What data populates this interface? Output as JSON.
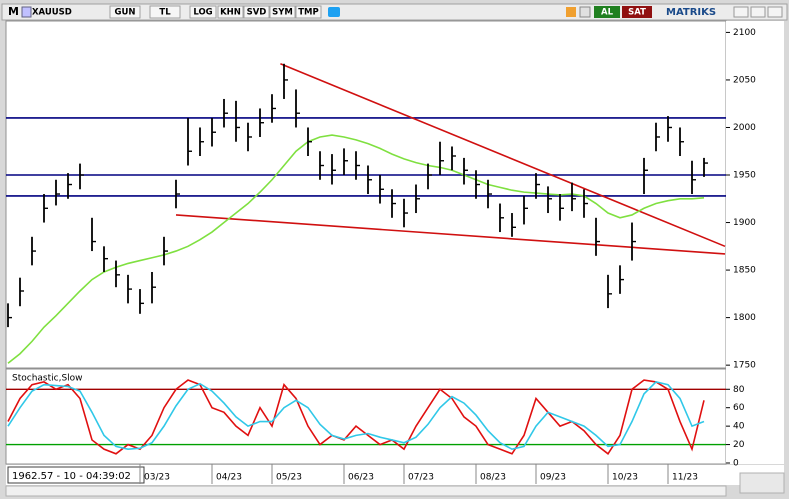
{
  "toolbar": {
    "menu": "M",
    "symbol": "XAUUSD",
    "buttons": [
      "GUN",
      "TL",
      "LOG",
      "KHN",
      "SVD",
      "SYM",
      "TMP"
    ],
    "buy": "AL",
    "sell": "SAT",
    "brand": "MATRIKS"
  },
  "status": "1962.57 - 10 - 04:39:02",
  "chart_data": [
    {
      "type": "ohlc",
      "categories": [
        null,
        null,
        null,
        null,
        null,
        null,
        null,
        null,
        null,
        null,
        null,
        "03/23",
        null,
        null,
        null,
        null,
        null,
        "04/23",
        null,
        null,
        null,
        null,
        "05/23",
        null,
        null,
        null,
        null,
        null,
        "06/23",
        null,
        null,
        null,
        null,
        "07/23",
        null,
        null,
        null,
        null,
        null,
        "08/23",
        null,
        null,
        null,
        null,
        "09/23",
        null,
        null,
        null,
        null,
        null,
        "10/23",
        null,
        null,
        null,
        null,
        "11/23",
        null,
        null,
        null
      ],
      "high": [
        1815,
        1842,
        1885,
        1930,
        1945,
        1952,
        1962,
        1905,
        1875,
        1860,
        1845,
        1830,
        1848,
        1885,
        1945,
        2010,
        2000,
        2010,
        2030,
        2028,
        2005,
        2020,
        2035,
        2067,
        2040,
        2000,
        1975,
        1972,
        1978,
        1975,
        1960,
        1950,
        1935,
        1925,
        1940,
        1962,
        1985,
        1980,
        1968,
        1955,
        1945,
        1920,
        1910,
        1928,
        1952,
        1938,
        1930,
        1942,
        1935,
        1905,
        1845,
        1855,
        1900,
        1968,
        2005,
        2012,
        2000,
        1965,
        1968
      ],
      "low": [
        1790,
        1812,
        1855,
        1900,
        1918,
        1925,
        1935,
        1870,
        1848,
        1832,
        1815,
        1804,
        1815,
        1855,
        1915,
        1960,
        1970,
        1980,
        2000,
        1985,
        1975,
        1990,
        2005,
        2030,
        2000,
        1970,
        1945,
        1940,
        1950,
        1945,
        1930,
        1920,
        1905,
        1895,
        1910,
        1935,
        1950,
        1955,
        1940,
        1925,
        1915,
        1890,
        1885,
        1898,
        1925,
        1910,
        1902,
        1912,
        1905,
        1865,
        1810,
        1825,
        1860,
        1930,
        1975,
        1985,
        1970,
        1930,
        1948
      ],
      "close": [
        1800,
        1828,
        1870,
        1915,
        1930,
        1940,
        1950,
        1880,
        1862,
        1845,
        1830,
        1815,
        1832,
        1870,
        1930,
        1975,
        1985,
        1995,
        2015,
        2000,
        1990,
        2005,
        2020,
        2050,
        2015,
        1985,
        1960,
        1955,
        1965,
        1960,
        1945,
        1935,
        1920,
        1910,
        1925,
        1950,
        1965,
        1970,
        1955,
        1940,
        1930,
        1905,
        1895,
        1915,
        1940,
        1925,
        1915,
        1925,
        1920,
        1880,
        1825,
        1840,
        1880,
        1955,
        1990,
        2000,
        1985,
        1945,
        1962.57
      ],
      "color": "#000000",
      "ma": {
        "color": "#7fe040",
        "values": [
          1752,
          1762,
          1775,
          1790,
          1802,
          1815,
          1828,
          1840,
          1848,
          1853,
          1857,
          1860,
          1863,
          1866,
          1870,
          1875,
          1882,
          1890,
          1900,
          1910,
          1920,
          1932,
          1945,
          1960,
          1975,
          1985,
          1990,
          1992,
          1990,
          1987,
          1983,
          1978,
          1972,
          1967,
          1963,
          1960,
          1958,
          1955,
          1950,
          1945,
          1940,
          1937,
          1934,
          1932,
          1931,
          1930,
          1929,
          1930,
          1928,
          1920,
          1910,
          1905,
          1908,
          1915,
          1920,
          1923,
          1925,
          1925,
          1926
        ]
      },
      "hlines": {
        "color": "#000080",
        "values": [
          2010,
          1950,
          1928
        ]
      },
      "trendlines": {
        "color": "#d01010",
        "lines": [
          {
            "x": [
              22.7,
              59.75
            ],
            "y": [
              2067,
              1875
            ]
          },
          {
            "x": [
              14,
              59.75
            ],
            "y": [
              1908,
              1867
            ]
          }
        ]
      },
      "ylim": [
        1747,
        2112
      ],
      "yticks": [
        1750,
        1800,
        1850,
        1900,
        1950,
        2000,
        2050,
        2100
      ]
    },
    {
      "type": "line",
      "title": "Stochastic,Slow",
      "series": [
        {
          "color": "#e01010",
          "values": [
            45,
            70,
            85,
            88,
            80,
            85,
            70,
            25,
            15,
            10,
            20,
            15,
            30,
            60,
            80,
            90,
            85,
            60,
            55,
            40,
            30,
            60,
            40,
            85,
            70,
            40,
            20,
            30,
            25,
            40,
            30,
            20,
            25,
            15,
            40,
            60,
            80,
            70,
            50,
            40,
            20,
            15,
            10,
            30,
            70,
            55,
            40,
            45,
            35,
            20,
            10,
            30,
            80,
            90,
            88,
            80,
            45,
            15,
            68
          ]
        },
        {
          "color": "#30c8e8",
          "values": [
            40,
            60,
            78,
            85,
            84,
            83,
            78,
            55,
            30,
            18,
            15,
            16,
            22,
            40,
            62,
            80,
            86,
            78,
            65,
            50,
            40,
            45,
            45,
            60,
            68,
            60,
            42,
            30,
            26,
            30,
            32,
            28,
            25,
            22,
            28,
            42,
            60,
            72,
            65,
            52,
            35,
            22,
            15,
            18,
            40,
            55,
            50,
            45,
            40,
            30,
            18,
            20,
            45,
            75,
            88,
            85,
            70,
            40,
            45
          ]
        }
      ],
      "levels": [
        {
          "value": 80,
          "color": "#a00000"
        },
        {
          "value": 20,
          "color": "#00a000"
        }
      ],
      "ylim": [
        0,
        102
      ],
      "yticks": [
        0,
        20,
        40,
        60,
        80
      ]
    }
  ]
}
